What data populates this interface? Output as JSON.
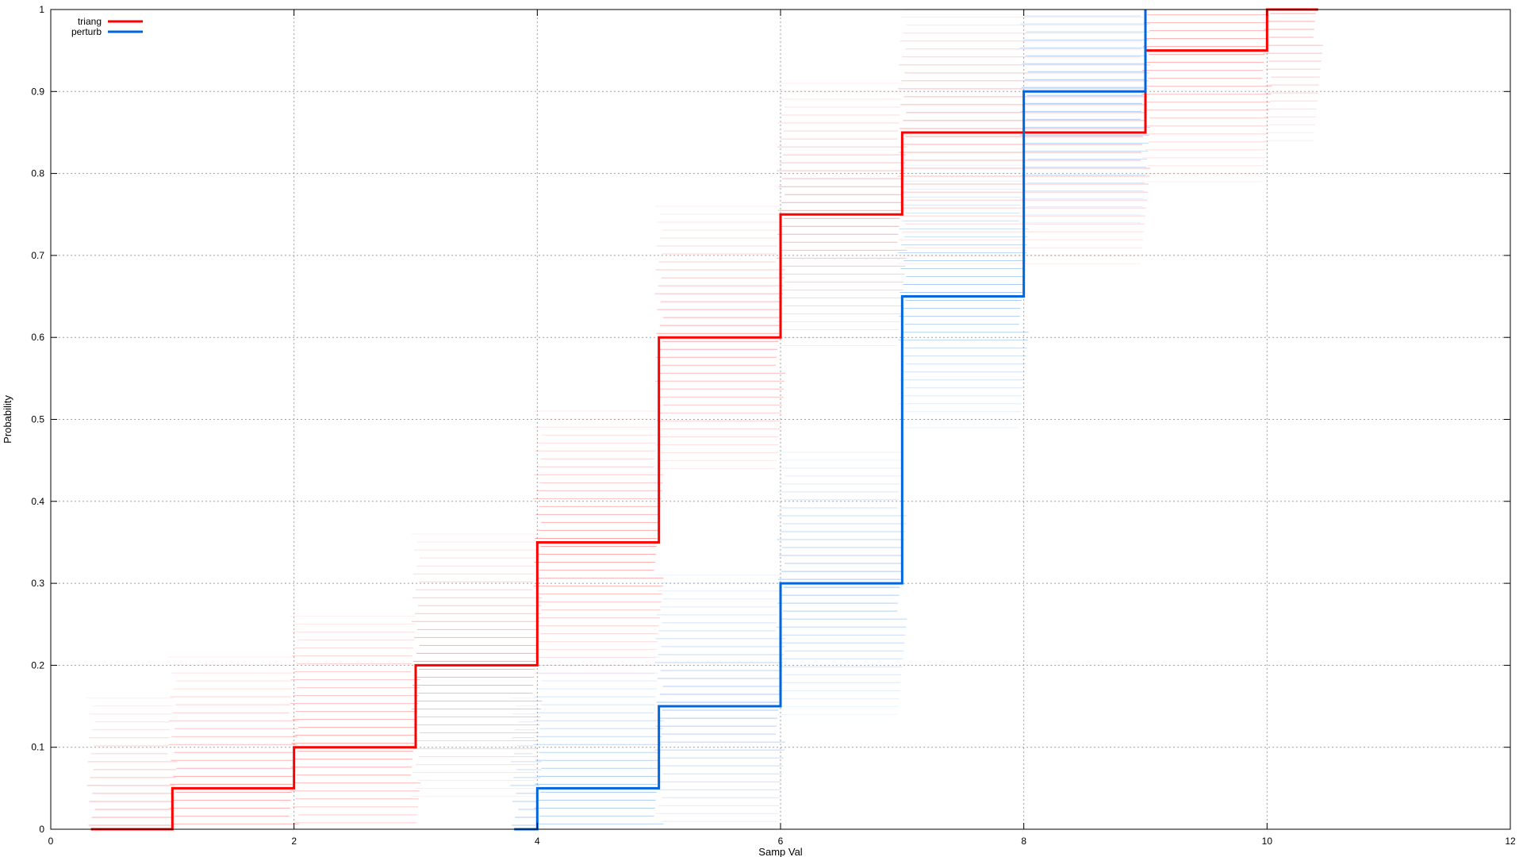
{
  "chart_data": {
    "type": "line",
    "xlabel": "Samp Val",
    "ylabel": "Probability",
    "xlim": [
      0,
      12
    ],
    "ylim": [
      0,
      1
    ],
    "x_ticks": [
      0,
      2,
      4,
      6,
      8,
      10,
      12
    ],
    "y_ticks": [
      0,
      0.1,
      0.2,
      0.3,
      0.4,
      0.5,
      0.6,
      0.7,
      0.8,
      0.9,
      1
    ],
    "y_tick_labels": [
      "0",
      "0.1",
      "0.2",
      "0.3",
      "0.4",
      "0.5",
      "0.6",
      "0.7",
      "0.8",
      "0.9",
      "1"
    ],
    "grid": true,
    "legend_position": "top-left",
    "series": [
      {
        "name": "triang",
        "color": "#ff0000",
        "step": true,
        "x": [
          0.33,
          1,
          2,
          3,
          4,
          5,
          6,
          7,
          9,
          10,
          10.42
        ],
        "y": [
          0,
          0.05,
          0.1,
          0.2,
          0.35,
          0.6,
          0.75,
          0.85,
          0.95,
          1,
          1
        ]
      },
      {
        "name": "perturb",
        "color": "#0066dd",
        "step": true,
        "x": [
          3.81,
          4,
          5,
          6,
          7,
          8,
          9
        ],
        "y": [
          0,
          0.05,
          0.15,
          0.3,
          0.65,
          0.9,
          1
        ]
      }
    ]
  }
}
